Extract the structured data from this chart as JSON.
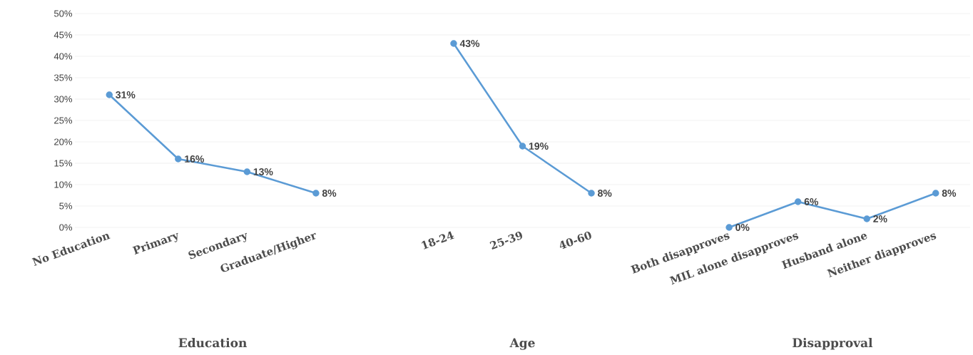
{
  "chart_data": {
    "type": "line",
    "categories": [
      "No Education",
      "Primary",
      "Secondary",
      "Graduate/Higher",
      null,
      "18-24",
      "25-39",
      "40-60",
      null,
      "Both disapproves",
      "MIL alone disapproves",
      "Husband alone",
      "Neither diapproves"
    ],
    "values": [
      31,
      16,
      13,
      8,
      null,
      43,
      19,
      8,
      null,
      0,
      6,
      2,
      8
    ],
    "value_labels": [
      "31%",
      "16%",
      "13%",
      "8%",
      null,
      "43%",
      "19%",
      "8%",
      null,
      "0%",
      "6%",
      "2%",
      "8%"
    ],
    "color": "#5b9bd5",
    "ylim": [
      0,
      50
    ],
    "yticks": [
      {
        "value": 0,
        "label": "0%"
      },
      {
        "value": 5,
        "label": "5%"
      },
      {
        "value": 10,
        "label": "10%"
      },
      {
        "value": 15,
        "label": "15%"
      },
      {
        "value": 20,
        "label": "20%"
      },
      {
        "value": 25,
        "label": "25%"
      },
      {
        "value": 30,
        "label": "30%"
      },
      {
        "value": 35,
        "label": "35%"
      },
      {
        "value": 40,
        "label": "40%"
      },
      {
        "value": 45,
        "label": "45%"
      },
      {
        "value": 50,
        "label": "50%"
      }
    ],
    "annotations": [
      "Education",
      "Age",
      "Disapproval"
    ],
    "grid": "y",
    "marker": "circle",
    "line_style": "solid"
  }
}
